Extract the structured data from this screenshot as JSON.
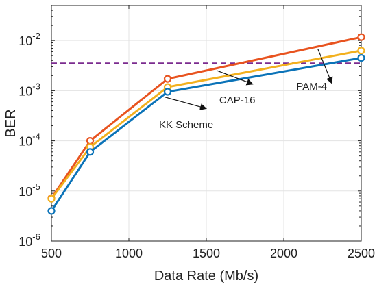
{
  "chart_data": {
    "type": "line",
    "xlabel": "Data Rate (Mb/s)",
    "ylabel": "BER",
    "y_scale": "log",
    "xlim": [
      500,
      2500
    ],
    "ylim": [
      1e-06,
      0.05
    ],
    "x_ticks": [
      {
        "value": 500,
        "label": "500"
      },
      {
        "value": 1000,
        "label": "1000"
      },
      {
        "value": 1500,
        "label": "1500"
      },
      {
        "value": 2000,
        "label": "2000"
      },
      {
        "value": 2500,
        "label": "2500"
      }
    ],
    "y_ticks": [
      {
        "value": 1e-06,
        "base": "10",
        "exp": "-6"
      },
      {
        "value": 1e-05,
        "base": "10",
        "exp": "-5"
      },
      {
        "value": 0.0001,
        "base": "10",
        "exp": "-4"
      },
      {
        "value": 0.001,
        "base": "10",
        "exp": "-3"
      },
      {
        "value": 0.01,
        "base": "10",
        "exp": "-2"
      }
    ],
    "grid": true,
    "series": [
      {
        "name": "PAM-4",
        "color": "#e8531f",
        "x": [
          500,
          750,
          1250,
          2500
        ],
        "y": [
          7.2e-06,
          0.0001,
          0.00172,
          0.0117
        ]
      },
      {
        "name": "CAP-16",
        "color": "#f2b01e",
        "x": [
          500,
          750,
          1250,
          2500
        ],
        "y": [
          7e-06,
          7.5e-05,
          0.00118,
          0.0063
        ]
      },
      {
        "name": "KK Scheme",
        "color": "#0b73b8",
        "x": [
          500,
          750,
          1250,
          2500
        ],
        "y": [
          4e-06,
          6e-05,
          0.00095,
          0.0045
        ]
      }
    ],
    "threshold": {
      "y": 0.0035,
      "color": "#7b2b8f",
      "style": "dashed"
    },
    "annotations": [
      {
        "text": "PAM-4",
        "series": "PAM-4",
        "from": [
          2220,
          0.0068
        ],
        "to": [
          2310,
          0.0014
        ],
        "text_at": [
          2180,
          0.00105
        ]
      },
      {
        "text": "CAP-16",
        "series": "CAP-16",
        "from": [
          1570,
          0.0025
        ],
        "to": [
          1800,
          0.00135
        ],
        "text_at": [
          1700,
          0.00056
        ]
      },
      {
        "text": "KK Scheme",
        "series": "KK Scheme",
        "from": [
          1230,
          0.00075
        ],
        "to": [
          1500,
          0.00044
        ],
        "text_at": [
          1370,
          0.00018
        ]
      }
    ]
  }
}
